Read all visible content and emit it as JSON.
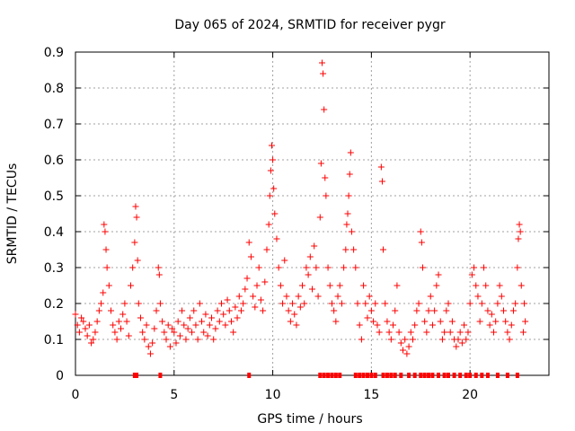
{
  "chart_data": {
    "type": "scatter",
    "title": "Day 065 of 2024, SRMTID for receiver pygr",
    "xlabel": "GPS time / hours",
    "ylabel": "SRMTID / TECUs",
    "xlim": [
      0,
      24
    ],
    "ylim": [
      0,
      0.9
    ],
    "x_ticks": [
      0,
      5,
      10,
      15,
      20
    ],
    "x_tick_labels": [
      "0",
      "5",
      "10",
      "15",
      "20"
    ],
    "y_ticks": [
      0,
      0.1,
      0.2,
      0.3,
      0.4,
      0.5,
      0.6,
      0.7,
      0.8,
      0.9
    ],
    "y_tick_labels": [
      "0",
      "0.1",
      "0.2",
      "0.3",
      "0.4",
      "0.5",
      "0.6",
      "0.7",
      "0.8",
      "0.9"
    ],
    "grid": true,
    "marker_color": "#ff0000",
    "series": [
      {
        "name": "SRMTID",
        "marker": "plus",
        "points": [
          [
            0.0,
            0.17
          ],
          [
            0.1,
            0.14
          ],
          [
            0.2,
            0.12
          ],
          [
            0.3,
            0.16
          ],
          [
            0.4,
            0.15
          ],
          [
            0.5,
            0.13
          ],
          [
            0.6,
            0.11
          ],
          [
            0.7,
            0.14
          ],
          [
            0.8,
            0.09
          ],
          [
            0.9,
            0.1
          ],
          [
            1.0,
            0.12
          ],
          [
            1.1,
            0.15
          ],
          [
            1.2,
            0.18
          ],
          [
            1.3,
            0.2
          ],
          [
            1.4,
            0.23
          ],
          [
            1.45,
            0.42
          ],
          [
            1.5,
            0.4
          ],
          [
            1.55,
            0.35
          ],
          [
            1.6,
            0.3
          ],
          [
            1.7,
            0.25
          ],
          [
            1.8,
            0.18
          ],
          [
            1.9,
            0.14
          ],
          [
            2.0,
            0.12
          ],
          [
            2.1,
            0.1
          ],
          [
            2.2,
            0.15
          ],
          [
            2.3,
            0.13
          ],
          [
            2.4,
            0.17
          ],
          [
            2.5,
            0.2
          ],
          [
            2.6,
            0.15
          ],
          [
            2.7,
            0.11
          ],
          [
            2.8,
            0.25
          ],
          [
            2.9,
            0.3
          ],
          [
            3.0,
            0.37
          ],
          [
            3.05,
            0.47
          ],
          [
            3.1,
            0.44
          ],
          [
            3.15,
            0.32
          ],
          [
            3.2,
            0.2
          ],
          [
            3.3,
            0.16
          ],
          [
            3.4,
            0.12
          ],
          [
            3.5,
            0.1
          ],
          [
            3.6,
            0.14
          ],
          [
            3.7,
            0.08
          ],
          [
            3.8,
            0.06
          ],
          [
            3.9,
            0.09
          ],
          [
            4.0,
            0.13
          ],
          [
            4.1,
            0.18
          ],
          [
            4.2,
            0.3
          ],
          [
            4.25,
            0.28
          ],
          [
            4.3,
            0.2
          ],
          [
            4.4,
            0.15
          ],
          [
            4.5,
            0.12
          ],
          [
            4.6,
            0.1
          ],
          [
            4.7,
            0.14
          ],
          [
            4.8,
            0.08
          ],
          [
            4.9,
            0.13
          ],
          [
            5.0,
            0.12
          ],
          [
            5.1,
            0.09
          ],
          [
            5.2,
            0.15
          ],
          [
            5.3,
            0.11
          ],
          [
            5.4,
            0.18
          ],
          [
            5.5,
            0.14
          ],
          [
            5.6,
            0.1
          ],
          [
            5.7,
            0.13
          ],
          [
            5.8,
            0.16
          ],
          [
            5.9,
            0.12
          ],
          [
            6.0,
            0.18
          ],
          [
            6.1,
            0.14
          ],
          [
            6.2,
            0.1
          ],
          [
            6.3,
            0.2
          ],
          [
            6.4,
            0.15
          ],
          [
            6.5,
            0.12
          ],
          [
            6.6,
            0.17
          ],
          [
            6.7,
            0.11
          ],
          [
            6.8,
            0.14
          ],
          [
            6.9,
            0.16
          ],
          [
            7.0,
            0.1
          ],
          [
            7.1,
            0.13
          ],
          [
            7.2,
            0.18
          ],
          [
            7.3,
            0.15
          ],
          [
            7.4,
            0.2
          ],
          [
            7.5,
            0.17
          ],
          [
            7.6,
            0.14
          ],
          [
            7.7,
            0.21
          ],
          [
            7.8,
            0.18
          ],
          [
            7.9,
            0.15
          ],
          [
            8.0,
            0.12
          ],
          [
            8.1,
            0.19
          ],
          [
            8.2,
            0.16
          ],
          [
            8.3,
            0.22
          ],
          [
            8.4,
            0.18
          ],
          [
            8.5,
            0.2
          ],
          [
            8.6,
            0.24
          ],
          [
            8.7,
            0.27
          ],
          [
            8.8,
            0.37
          ],
          [
            8.9,
            0.33
          ],
          [
            9.0,
            0.22
          ],
          [
            9.1,
            0.19
          ],
          [
            9.2,
            0.25
          ],
          [
            9.3,
            0.3
          ],
          [
            9.4,
            0.21
          ],
          [
            9.5,
            0.18
          ],
          [
            9.6,
            0.26
          ],
          [
            9.7,
            0.35
          ],
          [
            9.8,
            0.42
          ],
          [
            9.85,
            0.5
          ],
          [
            9.9,
            0.57
          ],
          [
            9.95,
            0.64
          ],
          [
            10.0,
            0.6
          ],
          [
            10.05,
            0.52
          ],
          [
            10.1,
            0.45
          ],
          [
            10.2,
            0.38
          ],
          [
            10.3,
            0.3
          ],
          [
            10.4,
            0.25
          ],
          [
            10.5,
            0.2
          ],
          [
            10.6,
            0.32
          ],
          [
            10.7,
            0.22
          ],
          [
            10.8,
            0.18
          ],
          [
            10.9,
            0.15
          ],
          [
            11.0,
            0.2
          ],
          [
            11.1,
            0.17
          ],
          [
            11.2,
            0.14
          ],
          [
            11.3,
            0.22
          ],
          [
            11.4,
            0.19
          ],
          [
            11.5,
            0.25
          ],
          [
            11.6,
            0.2
          ],
          [
            11.7,
            0.3
          ],
          [
            11.8,
            0.28
          ],
          [
            11.9,
            0.33
          ],
          [
            12.0,
            0.24
          ],
          [
            12.1,
            0.36
          ],
          [
            12.2,
            0.3
          ],
          [
            12.3,
            0.22
          ],
          [
            12.4,
            0.44
          ],
          [
            12.45,
            0.59
          ],
          [
            12.5,
            0.87
          ],
          [
            12.55,
            0.84
          ],
          [
            12.6,
            0.74
          ],
          [
            12.65,
            0.55
          ],
          [
            12.7,
            0.5
          ],
          [
            12.8,
            0.3
          ],
          [
            12.9,
            0.25
          ],
          [
            13.0,
            0.2
          ],
          [
            13.1,
            0.18
          ],
          [
            13.2,
            0.15
          ],
          [
            13.3,
            0.22
          ],
          [
            13.4,
            0.25
          ],
          [
            13.5,
            0.2
          ],
          [
            13.6,
            0.3
          ],
          [
            13.7,
            0.35
          ],
          [
            13.75,
            0.42
          ],
          [
            13.8,
            0.45
          ],
          [
            13.85,
            0.5
          ],
          [
            13.9,
            0.56
          ],
          [
            13.95,
            0.62
          ],
          [
            14.0,
            0.4
          ],
          [
            14.1,
            0.35
          ],
          [
            14.2,
            0.3
          ],
          [
            14.3,
            0.2
          ],
          [
            14.4,
            0.14
          ],
          [
            14.5,
            0.1
          ],
          [
            14.6,
            0.25
          ],
          [
            14.7,
            0.2
          ],
          [
            14.8,
            0.16
          ],
          [
            14.9,
            0.22
          ],
          [
            15.0,
            0.18
          ],
          [
            15.1,
            0.15
          ],
          [
            15.2,
            0.2
          ],
          [
            15.3,
            0.14
          ],
          [
            15.4,
            0.12
          ],
          [
            15.5,
            0.58
          ],
          [
            15.55,
            0.54
          ],
          [
            15.6,
            0.35
          ],
          [
            15.7,
            0.2
          ],
          [
            15.8,
            0.15
          ],
          [
            15.9,
            0.12
          ],
          [
            16.0,
            0.1
          ],
          [
            16.1,
            0.14
          ],
          [
            16.2,
            0.18
          ],
          [
            16.3,
            0.25
          ],
          [
            16.4,
            0.12
          ],
          [
            16.5,
            0.09
          ],
          [
            16.6,
            0.07
          ],
          [
            16.7,
            0.1
          ],
          [
            16.8,
            0.06
          ],
          [
            16.9,
            0.08
          ],
          [
            17.0,
            0.12
          ],
          [
            17.1,
            0.1
          ],
          [
            17.2,
            0.14
          ],
          [
            17.3,
            0.18
          ],
          [
            17.4,
            0.2
          ],
          [
            17.5,
            0.4
          ],
          [
            17.55,
            0.37
          ],
          [
            17.6,
            0.3
          ],
          [
            17.7,
            0.15
          ],
          [
            17.8,
            0.12
          ],
          [
            17.9,
            0.18
          ],
          [
            18.0,
            0.22
          ],
          [
            18.1,
            0.14
          ],
          [
            18.2,
            0.18
          ],
          [
            18.3,
            0.25
          ],
          [
            18.4,
            0.28
          ],
          [
            18.5,
            0.15
          ],
          [
            18.6,
            0.1
          ],
          [
            18.7,
            0.12
          ],
          [
            18.8,
            0.18
          ],
          [
            18.9,
            0.2
          ],
          [
            19.0,
            0.12
          ],
          [
            19.1,
            0.15
          ],
          [
            19.2,
            0.1
          ],
          [
            19.3,
            0.08
          ],
          [
            19.4,
            0.1
          ],
          [
            19.5,
            0.12
          ],
          [
            19.6,
            0.09
          ],
          [
            19.7,
            0.14
          ],
          [
            19.8,
            0.1
          ],
          [
            19.9,
            0.12
          ],
          [
            20.0,
            0.2
          ],
          [
            20.1,
            0.28
          ],
          [
            20.2,
            0.3
          ],
          [
            20.3,
            0.25
          ],
          [
            20.4,
            0.22
          ],
          [
            20.5,
            0.15
          ],
          [
            20.6,
            0.2
          ],
          [
            20.7,
            0.3
          ],
          [
            20.8,
            0.25
          ],
          [
            20.9,
            0.18
          ],
          [
            21.0,
            0.14
          ],
          [
            21.1,
            0.17
          ],
          [
            21.2,
            0.12
          ],
          [
            21.3,
            0.15
          ],
          [
            21.4,
            0.2
          ],
          [
            21.5,
            0.25
          ],
          [
            21.6,
            0.22
          ],
          [
            21.7,
            0.18
          ],
          [
            21.8,
            0.15
          ],
          [
            21.9,
            0.12
          ],
          [
            22.0,
            0.1
          ],
          [
            22.1,
            0.14
          ],
          [
            22.2,
            0.18
          ],
          [
            22.3,
            0.2
          ],
          [
            22.4,
            0.3
          ],
          [
            22.45,
            0.38
          ],
          [
            22.5,
            0.42
          ],
          [
            22.55,
            0.4
          ],
          [
            22.6,
            0.25
          ],
          [
            22.7,
            0.12
          ],
          [
            22.75,
            0.2
          ],
          [
            22.8,
            0.15
          ]
        ]
      },
      {
        "name": "zero",
        "marker": "square",
        "points": [
          [
            3.0,
            0
          ],
          [
            3.1,
            0
          ],
          [
            4.3,
            0
          ],
          [
            8.8,
            0
          ],
          [
            12.4,
            0
          ],
          [
            12.6,
            0
          ],
          [
            12.8,
            0
          ],
          [
            13.0,
            0
          ],
          [
            13.2,
            0
          ],
          [
            13.4,
            0
          ],
          [
            14.2,
            0
          ],
          [
            14.4,
            0
          ],
          [
            14.6,
            0
          ],
          [
            14.8,
            0
          ],
          [
            15.0,
            0
          ],
          [
            15.2,
            0
          ],
          [
            15.6,
            0
          ],
          [
            15.8,
            0
          ],
          [
            16.0,
            0
          ],
          [
            16.2,
            0
          ],
          [
            16.5,
            0
          ],
          [
            16.9,
            0
          ],
          [
            17.2,
            0
          ],
          [
            17.5,
            0
          ],
          [
            17.7,
            0
          ],
          [
            17.9,
            0
          ],
          [
            18.1,
            0
          ],
          [
            18.4,
            0
          ],
          [
            18.7,
            0
          ],
          [
            18.9,
            0
          ],
          [
            19.2,
            0
          ],
          [
            19.5,
            0
          ],
          [
            19.8,
            0
          ],
          [
            20.0,
            0
          ],
          [
            20.3,
            0
          ],
          [
            20.6,
            0
          ],
          [
            20.9,
            0
          ],
          [
            21.4,
            0
          ],
          [
            21.9,
            0
          ],
          [
            22.4,
            0
          ]
        ]
      }
    ]
  }
}
